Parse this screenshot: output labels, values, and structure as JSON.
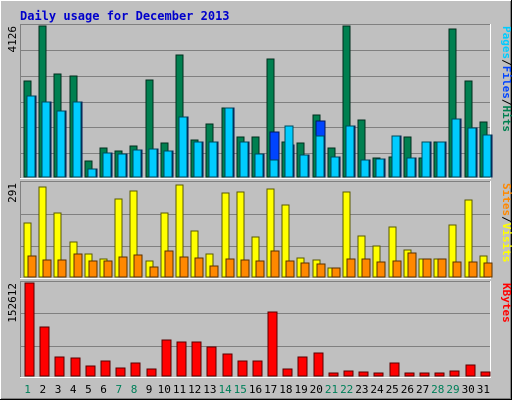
{
  "chart_data": {
    "type": "bar",
    "title": "Daily usage for December 2013",
    "categories": [
      "1",
      "2",
      "3",
      "4",
      "5",
      "6",
      "7",
      "8",
      "9",
      "10",
      "11",
      "12",
      "13",
      "14",
      "15",
      "16",
      "17",
      "18",
      "19",
      "20",
      "21",
      "22",
      "23",
      "24",
      "25",
      "26",
      "27",
      "28",
      "29",
      "30",
      "31"
    ],
    "weekend_days": [
      "1",
      "7",
      "8",
      "14",
      "15",
      "21",
      "22",
      "28",
      "29"
    ],
    "panels": [
      {
        "name": "hits-files-pages",
        "ymax_label": "4126",
        "ymax": 4126,
        "legend": [
          {
            "text": "Pages",
            "color": "#00ccff"
          },
          {
            "text": "/",
            "color": "#000000"
          },
          {
            "text": "Files",
            "color": "#0044ff"
          },
          {
            "text": "/",
            "color": "#000000"
          },
          {
            "text": "Hits",
            "color": "#008050"
          }
        ],
        "series": [
          {
            "name": "Hits",
            "color": "#008050",
            "values": [
              2620,
              4126,
              2810,
              2760,
              440,
              780,
              710,
              860,
              2660,
              920,
              3320,
              1000,
              1450,
              1890,
              1080,
              1100,
              3220,
              970,
              940,
              1690,
              790,
              4126,
              1570,
              530,
              560,
              1080,
              530,
              950,
              4050,
              2620,
              1510
            ]
          },
          {
            "name": "Files",
            "color": "#0044ff",
            "values": [
              2200,
              2040,
              1790,
              2040,
              220,
              660,
              630,
              750,
              760,
              720,
              1650,
              960,
              960,
              1890,
              950,
              640,
              1230,
              870,
              600,
              1520,
              550,
              1380,
              470,
              500,
              1110,
              510,
              960,
              950,
              1590,
              1330,
              1150
            ]
          },
          {
            "name": "Pages",
            "color": "#00ccff",
            "values": [
              2200,
              2040,
              1790,
              2040,
              220,
              660,
              630,
              750,
              760,
              720,
              1650,
              960,
              960,
              1890,
              950,
              640,
              470,
              1380,
              600,
              1130,
              550,
              1380,
              470,
              500,
              1110,
              510,
              960,
              950,
              1590,
              1330,
              1150
            ]
          }
        ]
      },
      {
        "name": "visits-sites",
        "ymax_label": "291",
        "ymax": 291,
        "legend": [
          {
            "text": "Sites",
            "color": "#ff8800"
          },
          {
            "text": "/",
            "color": "#000000"
          },
          {
            "text": "Visits",
            "color": "#ffff00"
          }
        ],
        "series": [
          {
            "name": "Visits",
            "color": "#ffff00",
            "values": [
              168,
              278,
              198,
              108,
              70,
              55,
              240,
              266,
              50,
              198,
              284,
              142,
              70,
              260,
              262,
              124,
              272,
              222,
              58,
              52,
              29,
              264,
              127,
              96,
              155,
              85,
              57,
              55,
              160,
              239,
              66
            ]
          },
          {
            "name": "Sites",
            "color": "#ff8800",
            "values": [
              66,
              54,
              53,
              72,
              50,
              48,
              63,
              67,
              32,
              82,
              63,
              58,
              35,
              56,
              53,
              49,
              80,
              49,
              44,
              41,
              29,
              56,
              56,
              45,
              50,
              73,
              57,
              55,
              46,
              47,
              43
            ]
          }
        ]
      },
      {
        "name": "kbytes",
        "ymax_label": "152612",
        "ymax": 152612,
        "legend": [
          {
            "text": "KBytes",
            "color": "#ff0000"
          }
        ],
        "series": [
          {
            "name": "KBytes",
            "color": "#ff0000",
            "values": [
              152612,
              80900,
              31000,
              29000,
              16400,
              24500,
              12900,
              22000,
              12300,
              59700,
              55400,
              56000,
              47100,
              36000,
              23900,
              24800,
              104800,
              12000,
              30900,
              37600,
              5600,
              7500,
              6600,
              4800,
              20900,
              5600,
              4700,
              4300,
              7500,
              17800,
              6600
            ]
          }
        ]
      }
    ]
  }
}
